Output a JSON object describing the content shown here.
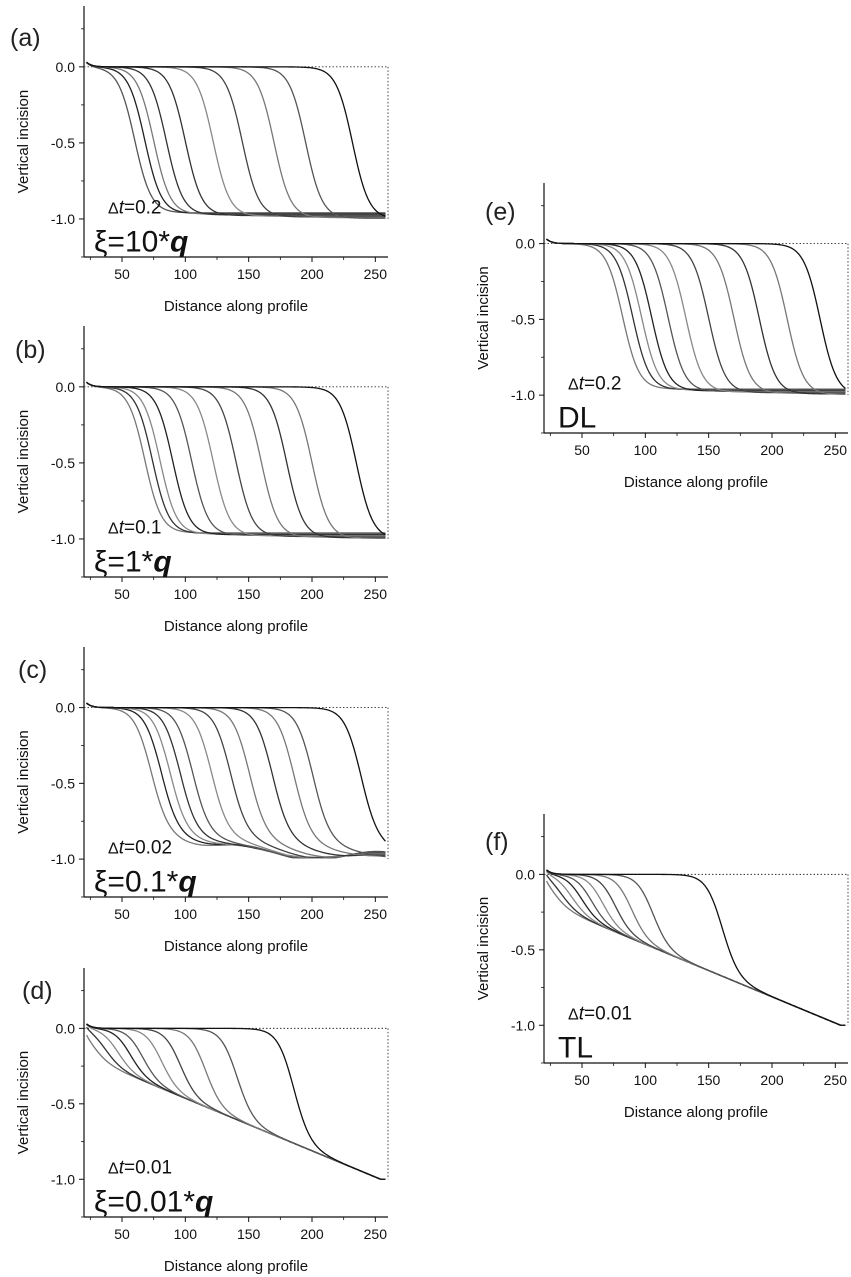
{
  "chart_data": [
    {
      "panel": "(a)",
      "type": "line",
      "xlabel": "Distance along profile",
      "ylabel": "Vertical incision",
      "dt_label": "0.2",
      "xi_label": "10",
      "label_prefix": "ξ=",
      "label_unit": "q",
      "xlim": [
        20,
        260
      ],
      "ylim": [
        -1.25,
        0.4
      ],
      "xticks": [
        50,
        100,
        150,
        200,
        250
      ],
      "yticks": [
        0.0,
        -0.5,
        -1.0
      ],
      "ytick_labels": [
        "0.0",
        "-0.5",
        "-1.0"
      ],
      "profile": "front_flat",
      "fronts": [
        60,
        68,
        75,
        85,
        100,
        122,
        145,
        170,
        195,
        232
      ],
      "line_colors": [
        "#555555",
        "#222222",
        "#777777",
        "#333333",
        "#333333",
        "#888888",
        "#444444",
        "#777777",
        "#555555",
        "#111111"
      ]
    },
    {
      "panel": "(b)",
      "type": "line",
      "xlabel": "Distance along profile",
      "ylabel": "Vertical incision",
      "dt_label": "0.1",
      "xi_label": "1",
      "label_prefix": "ξ=",
      "label_unit": "q",
      "xlim": [
        20,
        260
      ],
      "ylim": [
        -1.25,
        0.4
      ],
      "xticks": [
        50,
        100,
        150,
        200,
        250
      ],
      "yticks": [
        0.0,
        -0.5,
        -1.0
      ],
      "ytick_labels": [
        "0.0",
        "-0.5",
        "-1.0"
      ],
      "profile": "front_flat",
      "fronts": [
        68,
        74,
        80,
        90,
        105,
        122,
        140,
        160,
        180,
        200,
        235
      ],
      "line_colors": [
        "#777777",
        "#333333",
        "#888888",
        "#222222",
        "#555555",
        "#888888",
        "#444444",
        "#777777",
        "#333333",
        "#777777",
        "#111111"
      ]
    },
    {
      "panel": "(c)",
      "type": "line",
      "xlabel": "Distance along profile",
      "ylabel": "Vertical incision",
      "dt_label": "0.02",
      "xi_label": "0.1",
      "label_prefix": "ξ=",
      "label_unit": "q",
      "xlim": [
        20,
        260
      ],
      "ylim": [
        -1.25,
        0.4
      ],
      "xticks": [
        50,
        100,
        150,
        200,
        250
      ],
      "yticks": [
        0.0,
        -0.5,
        -1.0
      ],
      "ytick_labels": [
        "0.0",
        "-0.5",
        "-1.0"
      ],
      "profile": "front_sloped",
      "fronts": [
        72,
        80,
        87,
        95,
        105,
        120,
        135,
        150,
        168,
        185,
        200,
        238
      ],
      "line_colors": [
        "#777777",
        "#222222",
        "#888888",
        "#333333",
        "#555555",
        "#888888",
        "#444444",
        "#777777",
        "#333333",
        "#777777",
        "#555555",
        "#111111"
      ]
    },
    {
      "panel": "(d)",
      "type": "line",
      "xlabel": "Distance along profile",
      "ylabel": "Vertical incision",
      "dt_label": "0.01",
      "xi_label": "0.01",
      "label_prefix": "ξ=",
      "label_unit": "q",
      "xlim": [
        20,
        260
      ],
      "ylim": [
        -1.25,
        0.4
      ],
      "xticks": [
        50,
        100,
        150,
        200,
        250
      ],
      "yticks": [
        0.0,
        -0.5,
        -1.0
      ],
      "ytick_labels": [
        "0.0",
        "-0.5",
        "-1.0"
      ],
      "profile": "front_linear",
      "fronts": [
        25,
        35,
        45,
        55,
        65,
        80,
        95,
        115,
        140,
        185
      ],
      "line_colors": [
        "#777777",
        "#333333",
        "#888888",
        "#222222",
        "#555555",
        "#888888",
        "#444444",
        "#777777",
        "#555555",
        "#111111"
      ]
    },
    {
      "panel": "(e)",
      "type": "line",
      "xlabel": "Distance along profile",
      "ylabel": "Vertical incision",
      "dt_label": "0.2",
      "xi_label": "DL",
      "label_prefix": "",
      "label_unit": "",
      "xlim": [
        20,
        260
      ],
      "ylim": [
        -1.25,
        0.4
      ],
      "xticks": [
        50,
        100,
        150,
        200,
        250
      ],
      "yticks": [
        0.0,
        -0.5,
        -1.0
      ],
      "ytick_labels": [
        "0.0",
        "-0.5",
        "-1.0"
      ],
      "profile": "front_flat",
      "fronts": [
        82,
        90,
        97,
        105,
        118,
        132,
        150,
        170,
        190,
        212,
        238
      ],
      "line_colors": [
        "#777777",
        "#333333",
        "#888888",
        "#222222",
        "#555555",
        "#888888",
        "#444444",
        "#777777",
        "#333333",
        "#777777",
        "#111111"
      ]
    },
    {
      "panel": "(f)",
      "type": "line",
      "xlabel": "Distance along profile",
      "ylabel": "Vertical incision",
      "dt_label": "0.01",
      "xi_label": "TL",
      "label_prefix": "",
      "label_unit": "",
      "xlim": [
        20,
        260
      ],
      "ylim": [
        -1.25,
        0.4
      ],
      "xticks": [
        50,
        100,
        150,
        200,
        250
      ],
      "yticks": [
        0.0,
        -0.5,
        -1.0
      ],
      "ytick_labels": [
        "0.0",
        "-0.5",
        "-1.0"
      ],
      "profile": "front_linear",
      "fronts": [
        25,
        32,
        40,
        48,
        56,
        65,
        75,
        88,
        105,
        160
      ],
      "line_colors": [
        "#777777",
        "#333333",
        "#888888",
        "#222222",
        "#555555",
        "#888888",
        "#444444",
        "#777777",
        "#555555",
        "#111111"
      ]
    }
  ]
}
